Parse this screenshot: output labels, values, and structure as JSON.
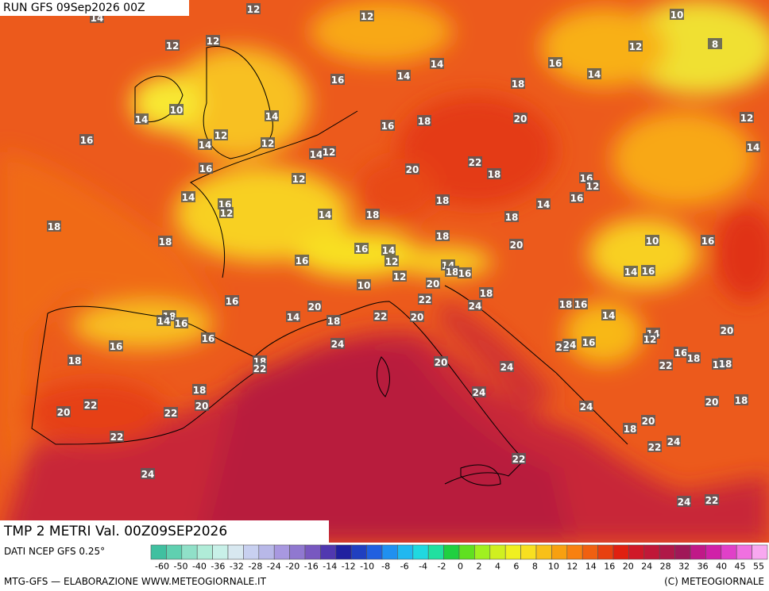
{
  "header": {
    "run": "RUN GFS 09Sep2026 00Z",
    "title": "TMP 2 METRI Val. 00Z09SEP2026",
    "source": "DATI NCEP GFS 0.25°"
  },
  "footer": {
    "left": "MTG-GFS — ELABORAZIONE WWW.METEOGIORNALE.IT",
    "right": "(C) METEOGIORNALE"
  },
  "colorbar": {
    "labels": [
      "-60",
      "-50",
      "-40",
      "-36",
      "-32",
      "-28",
      "-24",
      "-20",
      "-16",
      "-14",
      "-12",
      "-10",
      "-8",
      "-6",
      "-4",
      "-2",
      "0",
      "2",
      "4",
      "6",
      "8",
      "10",
      "12",
      "14",
      "16",
      "20",
      "24",
      "28",
      "32",
      "36",
      "40",
      "45",
      "55"
    ],
    "colors": [
      "#40c0a0",
      "#60d0b0",
      "#90e0c8",
      "#b0ecd8",
      "#c8f0e8",
      "#d8e8f0",
      "#c8d0f0",
      "#b8b8e8",
      "#a898e0",
      "#9078d0",
      "#7858c0",
      "#5038b0",
      "#2020a0",
      "#2040c0",
      "#2060e0",
      "#2090f0",
      "#20b8f0",
      "#20d8e0",
      "#20e0a0",
      "#20d040",
      "#60e020",
      "#a0f020",
      "#d0f020",
      "#f0f020",
      "#f8e020",
      "#f8c018",
      "#f8a010",
      "#f88010",
      "#f06010",
      "#e84010",
      "#e02010",
      "#d01828",
      "#c01838",
      "#b01848",
      "#a01858",
      "#c01888",
      "#d020a8",
      "#e040c8",
      "#f070e0",
      "#f8a8f0"
    ]
  },
  "map_labels": [
    12,
    12,
    10,
    14,
    12,
    12,
    14,
    14,
    16,
    12,
    14,
    16,
    18,
    10,
    14,
    14,
    16,
    18,
    20,
    12,
    16,
    12,
    14,
    12,
    14,
    12,
    14,
    16,
    20,
    22,
    18,
    12,
    16,
    12,
    14,
    16,
    12,
    14,
    18,
    18,
    14,
    16,
    18,
    18,
    18,
    18,
    10,
    16,
    16,
    16,
    14,
    12,
    20,
    14,
    18,
    16,
    12,
    10,
    20,
    14,
    16,
    16,
    22,
    24,
    18,
    18,
    16,
    20,
    14,
    18,
    22,
    20,
    14,
    18,
    14,
    16,
    16,
    16,
    24,
    22,
    24,
    16,
    14,
    12,
    20,
    16,
    18,
    18,
    22,
    16,
    18,
    18,
    22,
    20,
    24,
    18,
    24,
    20,
    22,
    22,
    20,
    24,
    20,
    18,
    20,
    18,
    22,
    22,
    24,
    22,
    24,
    24,
    22,
    8
  ]
}
